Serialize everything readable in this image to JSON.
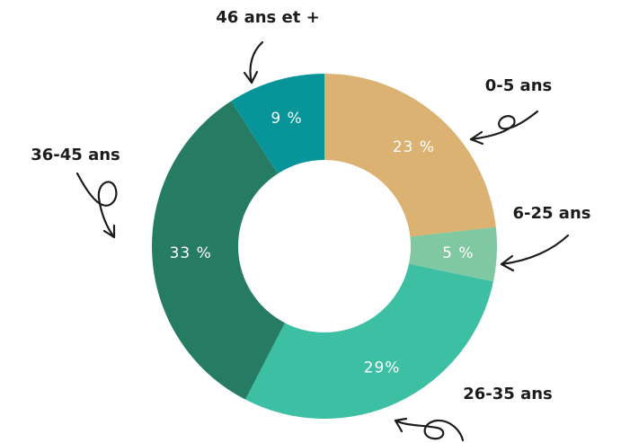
{
  "chart_data": {
    "type": "pie",
    "donut": true,
    "title": "",
    "categories": [
      "0-5 ans",
      "6-25 ans",
      "26-35 ans",
      "36-45 ans",
      "46 ans et +"
    ],
    "values": [
      23,
      5,
      29,
      33,
      9
    ],
    "value_labels": [
      "23 %",
      "5 %",
      "29%",
      "33 %",
      "9 %"
    ],
    "colors": [
      "#DBB271",
      "#7FC8A1",
      "#3DBFA4",
      "#267C62",
      "#08959A"
    ],
    "legend": "none",
    "label_color": "#FFFFFF",
    "annotation_color": "#1C1C1C"
  }
}
